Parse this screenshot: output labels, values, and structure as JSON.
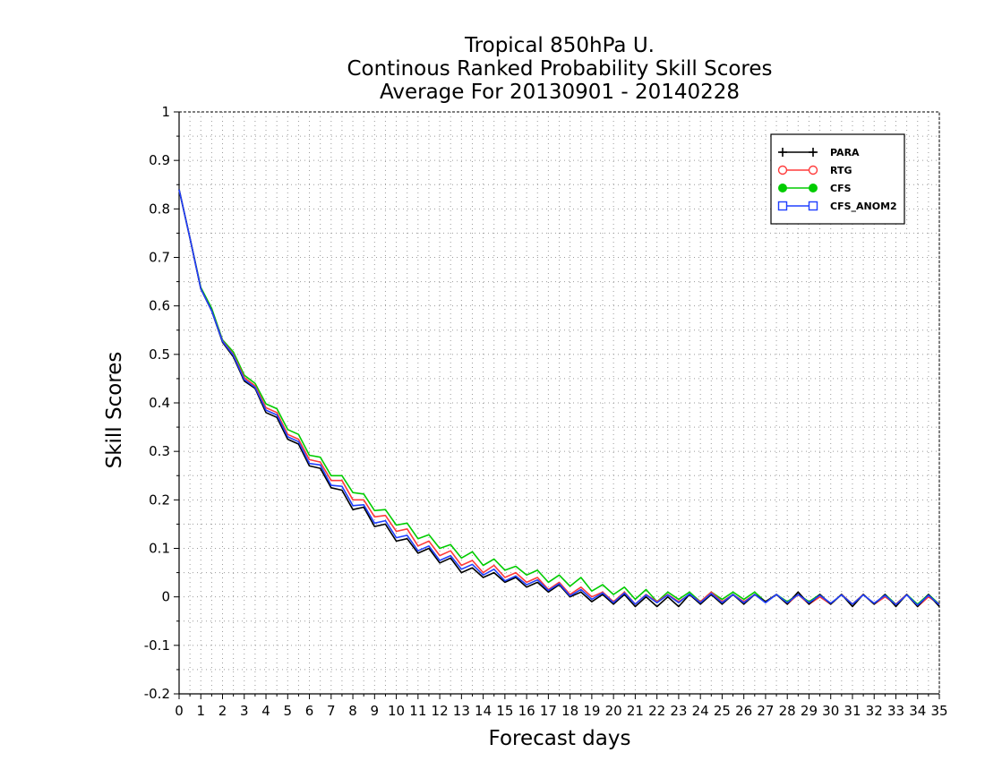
{
  "chart_data": {
    "type": "line",
    "title_lines": [
      "Tropical 850hPa U.",
      "Continous Ranked Probability Skill Scores",
      "Average For 20130901 - 20140228"
    ],
    "xlabel": "Forecast days",
    "ylabel": "Skill Scores",
    "xlim": [
      0,
      35
    ],
    "ylim": [
      -0.2,
      1
    ],
    "x_ticks": [
      0,
      1,
      2,
      3,
      4,
      5,
      6,
      7,
      8,
      9,
      10,
      11,
      12,
      13,
      14,
      15,
      16,
      17,
      18,
      19,
      20,
      21,
      22,
      23,
      24,
      25,
      26,
      27,
      28,
      29,
      30,
      31,
      32,
      33,
      34,
      35
    ],
    "y_ticks": [
      -0.2,
      -0.1,
      0,
      0.1,
      0.2,
      0.3,
      0.4,
      0.5,
      0.6,
      0.7,
      0.8,
      0.9,
      1
    ],
    "y_tick_labels": [
      "-0.2",
      "-0.1",
      "0",
      "0.1",
      "0.2",
      "0.3",
      "0.4",
      "0.5",
      "0.6",
      "0.7",
      "0.8",
      "0.9",
      "1"
    ],
    "grid": true,
    "legend_position": "top-right",
    "series": [
      {
        "name": "PARA",
        "color": "#000000",
        "marker": "plus",
        "x": [
          0,
          0.5,
          1,
          1.5,
          2,
          2.5,
          3,
          3.5,
          4,
          4.5,
          5,
          5.5,
          6,
          6.5,
          7,
          7.5,
          8,
          8.5,
          9,
          9.5,
          10,
          10.5,
          11,
          11.5,
          12,
          12.5,
          13,
          13.5,
          14,
          14.5,
          15,
          15.5,
          16,
          16.5,
          17,
          17.5,
          18,
          18.5,
          19,
          19.5,
          20,
          20.5,
          21,
          21.5,
          22,
          22.5,
          23,
          23.5,
          24,
          24.5,
          25,
          25.5,
          26,
          26.5,
          27,
          27.5,
          28,
          28.5,
          29,
          29.5,
          30,
          30.5,
          31,
          31.5,
          32,
          32.5,
          33,
          33.5,
          34,
          34.5,
          35
        ],
        "y": [
          0.84,
          0.74,
          0.635,
          0.59,
          0.525,
          0.495,
          0.445,
          0.43,
          0.38,
          0.37,
          0.325,
          0.315,
          0.27,
          0.265,
          0.225,
          0.22,
          0.18,
          0.185,
          0.145,
          0.15,
          0.115,
          0.12,
          0.09,
          0.1,
          0.07,
          0.08,
          0.05,
          0.06,
          0.04,
          0.05,
          0.03,
          0.04,
          0.02,
          0.03,
          0.01,
          0.025,
          0.0,
          0.01,
          -0.01,
          0.005,
          -0.015,
          0.005,
          -0.02,
          0.0,
          -0.02,
          0.0,
          -0.02,
          0.005,
          -0.015,
          0.005,
          -0.015,
          0.005,
          -0.015,
          0.005,
          -0.01,
          0.005,
          -0.015,
          0.01,
          -0.015,
          0.005,
          -0.015,
          0.005,
          -0.02,
          0.005,
          -0.015,
          0.005,
          -0.02,
          0.005,
          -0.02,
          0.005,
          -0.02
        ]
      },
      {
        "name": "RTG",
        "color": "#ff3b3b",
        "marker": "open-circle",
        "x": [
          0,
          0.5,
          1,
          1.5,
          2,
          2.5,
          3,
          3.5,
          4,
          4.5,
          5,
          5.5,
          6,
          6.5,
          7,
          7.5,
          8,
          8.5,
          9,
          9.5,
          10,
          10.5,
          11,
          11.5,
          12,
          12.5,
          13,
          13.5,
          14,
          14.5,
          15,
          15.5,
          16,
          16.5,
          17,
          17.5,
          18,
          18.5,
          19,
          19.5,
          20,
          20.5,
          21,
          21.5,
          22,
          22.5,
          23,
          23.5,
          24,
          24.5,
          25,
          25.5,
          26,
          26.5,
          27,
          27.5,
          28,
          28.5,
          29,
          29.5,
          30,
          30.5,
          31,
          31.5,
          32,
          32.5,
          33,
          33.5,
          34,
          34.5,
          35
        ],
        "y": [
          0.84,
          0.74,
          0.635,
          0.59,
          0.528,
          0.5,
          0.452,
          0.435,
          0.39,
          0.38,
          0.335,
          0.325,
          0.283,
          0.278,
          0.24,
          0.24,
          0.2,
          0.2,
          0.165,
          0.168,
          0.135,
          0.14,
          0.105,
          0.115,
          0.085,
          0.095,
          0.065,
          0.075,
          0.05,
          0.065,
          0.04,
          0.05,
          0.03,
          0.04,
          0.015,
          0.03,
          0.005,
          0.02,
          0.0,
          0.01,
          -0.01,
          0.01,
          -0.015,
          0.005,
          -0.01,
          0.005,
          -0.01,
          0.005,
          -0.01,
          0.01,
          -0.01,
          0.005,
          -0.01,
          0.005,
          -0.01,
          0.005,
          -0.015,
          0.005,
          -0.015,
          0.0,
          -0.015,
          0.005,
          -0.015,
          0.005,
          -0.015,
          0.0,
          -0.015,
          0.005,
          -0.02,
          0.0,
          -0.015
        ]
      },
      {
        "name": "CFS",
        "color": "#00cc00",
        "marker": "filled-circle",
        "x": [
          0,
          0.5,
          1,
          1.5,
          2,
          2.5,
          3,
          3.5,
          4,
          4.5,
          5,
          5.5,
          6,
          6.5,
          7,
          7.5,
          8,
          8.5,
          9,
          9.5,
          10,
          10.5,
          11,
          11.5,
          12,
          12.5,
          13,
          13.5,
          14,
          14.5,
          15,
          15.5,
          16,
          16.5,
          17,
          17.5,
          18,
          18.5,
          19,
          19.5,
          20,
          20.5,
          21,
          21.5,
          22,
          22.5,
          23,
          23.5,
          24,
          24.5,
          25,
          25.5,
          26,
          26.5,
          27,
          27.5,
          28,
          28.5,
          29,
          29.5,
          30,
          30.5,
          31,
          31.5,
          32,
          32.5,
          33,
          33.5,
          34,
          34.5,
          35
        ],
        "y": [
          0.84,
          0.74,
          0.638,
          0.595,
          0.53,
          0.505,
          0.457,
          0.44,
          0.398,
          0.388,
          0.345,
          0.335,
          0.292,
          0.288,
          0.25,
          0.25,
          0.215,
          0.212,
          0.178,
          0.18,
          0.148,
          0.152,
          0.12,
          0.128,
          0.1,
          0.108,
          0.08,
          0.093,
          0.065,
          0.078,
          0.055,
          0.063,
          0.045,
          0.055,
          0.03,
          0.045,
          0.022,
          0.04,
          0.012,
          0.025,
          0.005,
          0.02,
          -0.005,
          0.015,
          -0.01,
          0.01,
          -0.005,
          0.01,
          -0.01,
          0.01,
          -0.005,
          0.01,
          -0.005,
          0.01,
          -0.01,
          0.005,
          -0.01,
          0.005,
          -0.01,
          0.005,
          -0.015,
          0.005,
          -0.015,
          0.005,
          -0.015,
          0.005,
          -0.015,
          0.005,
          -0.015,
          0.005,
          -0.015
        ]
      },
      {
        "name": "CFS_ANOM2",
        "color": "#2040ff",
        "marker": "open-square",
        "x": [
          0,
          0.5,
          1,
          1.5,
          2,
          2.5,
          3,
          3.5,
          4,
          4.5,
          5,
          5.5,
          6,
          6.5,
          7,
          7.5,
          8,
          8.5,
          9,
          9.5,
          10,
          10.5,
          11,
          11.5,
          12,
          12.5,
          13,
          13.5,
          14,
          14.5,
          15,
          15.5,
          16,
          16.5,
          17,
          17.5,
          18,
          18.5,
          19,
          19.5,
          20,
          20.5,
          21,
          21.5,
          22,
          22.5,
          23,
          23.5,
          24,
          24.5,
          25,
          25.5,
          26,
          26.5,
          27,
          27.5,
          28,
          28.5,
          29,
          29.5,
          30,
          30.5,
          31,
          31.5,
          32,
          32.5,
          33,
          33.5,
          34,
          34.5,
          35
        ],
        "y": [
          0.84,
          0.74,
          0.635,
          0.59,
          0.527,
          0.498,
          0.448,
          0.432,
          0.385,
          0.375,
          0.33,
          0.32,
          0.275,
          0.272,
          0.23,
          0.228,
          0.188,
          0.19,
          0.152,
          0.157,
          0.122,
          0.127,
          0.095,
          0.105,
          0.075,
          0.085,
          0.057,
          0.067,
          0.045,
          0.057,
          0.033,
          0.043,
          0.025,
          0.035,
          0.013,
          0.027,
          0.002,
          0.015,
          -0.005,
          0.008,
          -0.012,
          0.008,
          -0.015,
          0.004,
          -0.012,
          0.004,
          -0.012,
          0.006,
          -0.012,
          0.007,
          -0.012,
          0.005,
          -0.012,
          0.005,
          -0.012,
          0.005,
          -0.012,
          0.005,
          -0.012,
          0.003,
          -0.013,
          0.004,
          -0.015,
          0.004,
          -0.013,
          0.003,
          -0.016,
          0.004,
          -0.017,
          0.003,
          -0.016
        ]
      }
    ]
  }
}
